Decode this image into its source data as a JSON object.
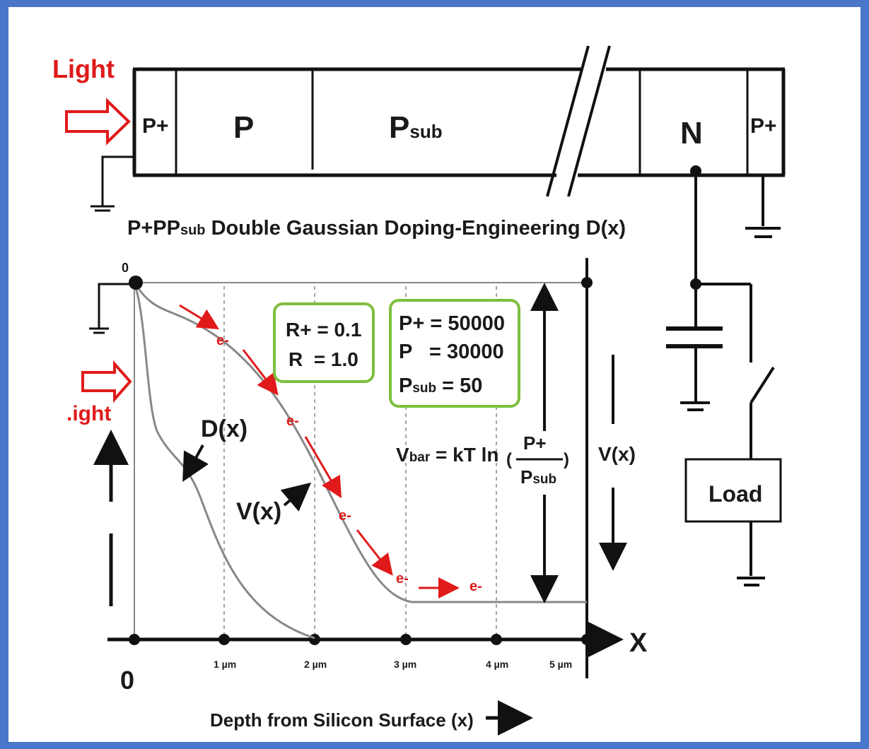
{
  "device": {
    "light_label_top": "Light",
    "light_label_left": ".ight",
    "regions": [
      {
        "label": "P+"
      },
      {
        "label": "P"
      },
      {
        "label_main": "P",
        "label_sub": "sub"
      },
      {
        "label": "N"
      },
      {
        "label": "P+"
      }
    ]
  },
  "title": {
    "prefix": "P+PP",
    "sub": "sub",
    "suffix": " Double Gaussian Doping-Engineering D(x)"
  },
  "plot": {
    "origin_top": "0",
    "origin_bottom": "0",
    "x_axis_letter": "X",
    "x_ticks": [
      "1 µm",
      "2 µm",
      "3 µm",
      "4 µm",
      "5 µm"
    ],
    "x_caption": "Depth from Silicon Surface (x)",
    "curve_label_d": "D(x)",
    "curve_label_v": "V(x)",
    "side_label_v": "V(x)",
    "electron": "e-",
    "ratio_box": {
      "line1": "R+ = 0.1",
      "line2": "R  = 1.0"
    },
    "doping_box": {
      "line1": "P+ = 50000",
      "line2": "P   = 30000",
      "line3_main": "P",
      "line3_sub": "sub",
      "line3_rest": " = 50"
    },
    "vbar": {
      "prefix": "V",
      "sub": "bar",
      "rest": " = kT ln",
      "numerator": "P+",
      "denominator_main": "P",
      "denominator_sub": "sub"
    }
  },
  "circuit": {
    "load_label": "Load"
  },
  "colors": {
    "red": "#e01a1a",
    "green_box": "#7dbf3e",
    "border": "#4a76c9",
    "ink": "#111111"
  }
}
